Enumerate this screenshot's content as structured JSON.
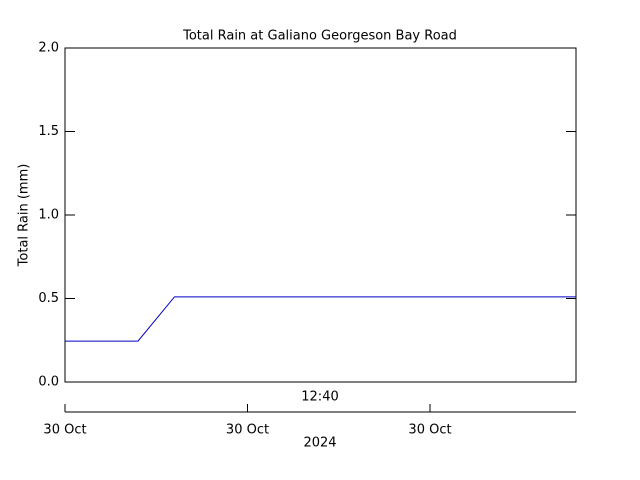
{
  "chart_data": {
    "type": "line",
    "title": "Total Rain at Galiano Georgeson Bay Road",
    "y_label": "Total Rain (mm)",
    "x_label": "2024",
    "annotation": "12:40",
    "x": [
      0,
      2,
      3,
      14
    ],
    "series": [
      {
        "color": "#0000c8",
        "values": [
          0.245,
          0.245,
          0.51,
          0.51
        ]
      }
    ],
    "xlim": [
      0,
      14
    ],
    "xticks": [
      {
        "value": 0,
        "label": "30 Oct"
      },
      {
        "value": 5,
        "label": "30 Oct"
      },
      {
        "value": 10,
        "label": "30 Oct"
      }
    ],
    "ylim": [
      0,
      2
    ],
    "yticks": [
      {
        "value": 0,
        "label": "0.0"
      },
      {
        "value": 0.5,
        "label": "0.5"
      },
      {
        "value": 1,
        "label": "1.0"
      },
      {
        "value": 1.5,
        "label": "1.5"
      },
      {
        "value": 2,
        "label": "2.0"
      }
    ]
  }
}
